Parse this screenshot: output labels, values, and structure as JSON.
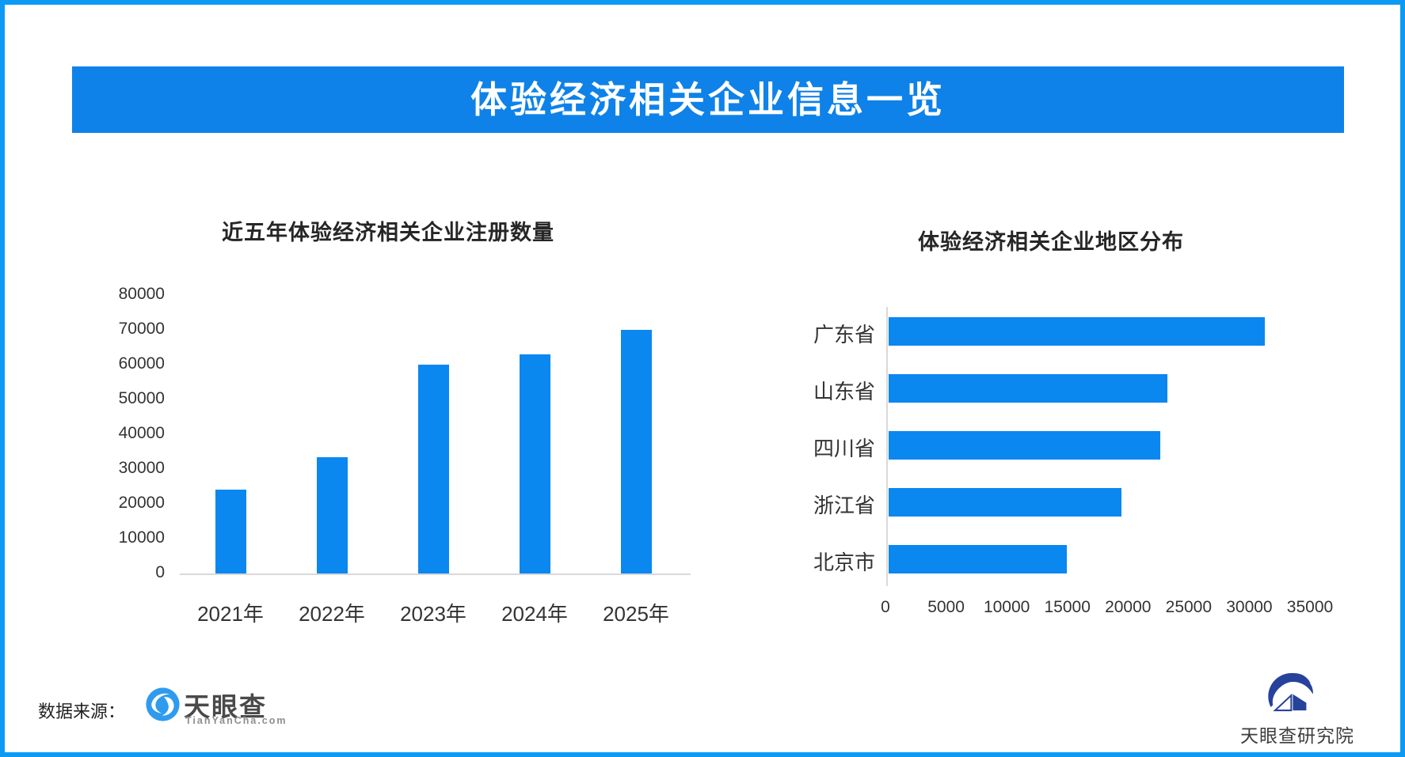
{
  "frame": {
    "border_color": "#0d9af5",
    "background_color": "#ffffff"
  },
  "header": {
    "title": "体验经济相关企业信息一览",
    "bg_color": "#0e82e8",
    "text_color": "#ffffff"
  },
  "chart_data": [
    {
      "type": "bar",
      "orientation": "vertical",
      "title": "近五年体验经济相关企业注册数量",
      "categories": [
        "2021年",
        "2022年",
        "2023年",
        "2024年",
        "2025年"
      ],
      "values": [
        24000,
        33500,
        60000,
        63000,
        70000
      ],
      "ylim": [
        0,
        80000
      ],
      "yticks": [
        0,
        10000,
        20000,
        30000,
        40000,
        50000,
        60000,
        70000,
        80000
      ],
      "grid": false,
      "legend": "none",
      "bar_color": "#0b87f0",
      "axis_color": "#d9d9d9",
      "xlabel": "",
      "ylabel": ""
    },
    {
      "type": "bar",
      "orientation": "horizontal",
      "title": "体验经济相关企业地区分布",
      "categories": [
        "广东省",
        "山东省",
        "四川省",
        "浙江省",
        "北京市"
      ],
      "values": [
        31000,
        23000,
        22400,
        19200,
        14700
      ],
      "xlim": [
        0,
        35000
      ],
      "xticks": [
        0,
        5000,
        10000,
        15000,
        20000,
        25000,
        30000,
        35000
      ],
      "grid": false,
      "legend": "none",
      "bar_color": "#0b87f0",
      "axis_color": "#d9d9d9",
      "xlabel": "",
      "ylabel": ""
    }
  ],
  "footer": {
    "source_label": "数据来源：",
    "tianyancha_logo": {
      "name": "天眼查",
      "subtitle": "TianYanCha.com",
      "icon_color": "#2e9bee"
    },
    "research_logo": {
      "name": "天眼查研究院",
      "icon_color": "#26429a"
    }
  }
}
